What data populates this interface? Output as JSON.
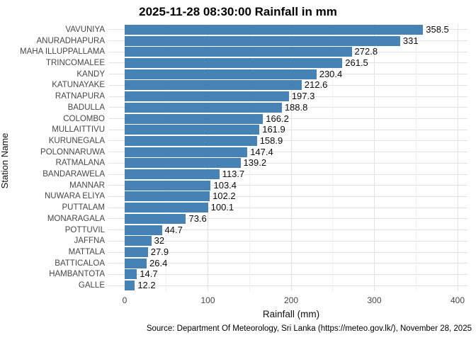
{
  "chart_data": {
    "type": "bar",
    "orientation": "horizontal",
    "title": "2025-11-28 08:30:00 Rainfall in mm",
    "xlabel": "Rainfall (mm)",
    "ylabel": "Station Name",
    "caption": "Source: Department Of Meteorology, Sri Lanka (https://meteo.gov.lk/), November 28, 2025",
    "categories": [
      "VAVUNIYA",
      "ANURADHAPURA",
      "MAHA ILLUPPALLAMA",
      "TRINCOMALEE",
      "KANDY",
      "KATUNAYAKE",
      "RATNAPURA",
      "BADULLA",
      "COLOMBO",
      "MULLAITTIVU",
      "KURUNEGALA",
      "POLONNARUWA",
      "RATMALANA",
      "BANDARAWELA",
      "MANNAR",
      "NUWARA ELIYA",
      "PUTTALAM",
      "MONARAGALA",
      "POTTUVIL",
      "JAFFNA",
      "MATTALA",
      "BATTICALOA",
      "HAMBANTOTA",
      "GALLE"
    ],
    "values": [
      358.5,
      331,
      272.8,
      261.5,
      230.4,
      212.6,
      197.3,
      188.8,
      166.2,
      161.9,
      158.9,
      147.4,
      139.2,
      113.7,
      103.4,
      102.2,
      100.1,
      73.6,
      44.7,
      32,
      27.9,
      26.4,
      14.7,
      12.2
    ],
    "value_labels": [
      "358.5",
      "331",
      "272.8",
      "261.5",
      "230.4",
      "212.6",
      "197.3",
      "188.8",
      "166.2",
      "161.9",
      "158.9",
      "147.4",
      "139.2",
      "113.7",
      "103.4",
      "102.2",
      "100.1",
      "73.6",
      "44.7",
      "32",
      "27.9",
      "26.4",
      "14.7",
      "12.2"
    ],
    "xticks": [
      0,
      100,
      200,
      300,
      400
    ],
    "minor_ticks": [
      50,
      150,
      250,
      350
    ],
    "xlim": [
      0,
      412
    ],
    "bar_color": "#4682B4",
    "grid": "major and minor vertical, one horizontal line per category",
    "legend": "none"
  }
}
